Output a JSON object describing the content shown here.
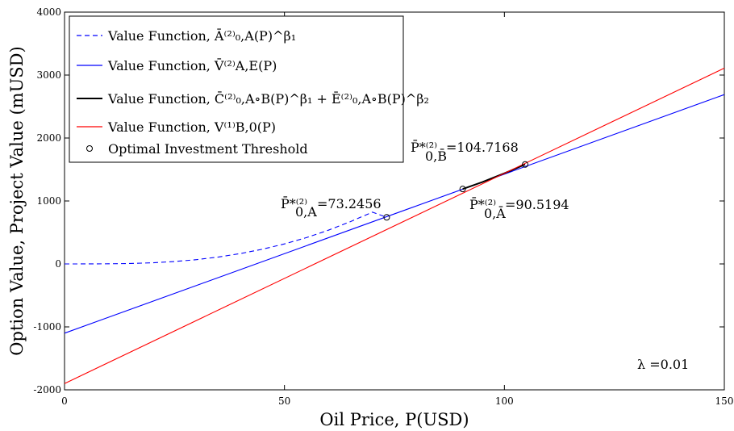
{
  "chart_data": {
    "type": "line",
    "xlabel": "Oil Price, P(USD)",
    "ylabel": "Option Value, Project Value (mUSD)",
    "xlim": [
      0,
      150
    ],
    "ylim": [
      -2000,
      4000
    ],
    "xticks": [
      0,
      50,
      100,
      150
    ],
    "yticks": [
      -2000,
      -1000,
      0,
      1000,
      2000,
      3000,
      4000
    ],
    "grid": false,
    "legend_position": "top-left",
    "series": [
      {
        "name": "Value Function, Ā⁽²⁾₀,A(P)^β₁",
        "style": "dashed",
        "color": "#0000ff",
        "x": [
          0,
          5,
          10,
          15,
          20,
          25,
          30,
          35,
          40,
          45,
          50,
          55,
          60,
          65,
          70,
          73.2456
        ],
        "y": [
          0,
          0.2,
          2,
          7,
          18,
          38,
          68,
          110,
          165,
          234,
          318,
          418,
          536,
          672,
          823,
          740
        ]
      },
      {
        "name": "Value Function, V̄⁽²⁾A,E(P)",
        "style": "solid",
        "color": "#0000ff",
        "x": [
          0,
          150
        ],
        "y": [
          -1100,
          2690
        ]
      },
      {
        "name": "Value Function, C̄⁽²⁾₀,A∘B(P)^β₁ + Ē⁽²⁾₀,A∘B(P)^β₂",
        "style": "solid",
        "color": "#000000",
        "x": [
          90.5194,
          95,
          100,
          104.7168
        ],
        "y": [
          1190,
          1300,
          1440,
          1580
        ]
      },
      {
        "name": "Value Function, V⁽¹⁾B,0(P)",
        "style": "solid",
        "color": "#ff0000",
        "x": [
          0,
          150
        ],
        "y": [
          -1900,
          3110
        ]
      },
      {
        "name": "Optimal Investment Threshold",
        "style": "marker",
        "color": "#000000",
        "x": [
          73.2456,
          90.5194,
          104.7168
        ],
        "y": [
          740,
          1190,
          1580
        ]
      }
    ],
    "annotations": [
      {
        "symbol": "P̄*⁽²⁾",
        "subscript": "0,A",
        "text": "=73.2456"
      },
      {
        "symbol": "P̄*⁽²⁾",
        "subscript": "0,B̄",
        "text": "=104.7168"
      },
      {
        "symbol": "P̄*⁽²⁾",
        "subscript": "0,Ā",
        "text": "=90.5194"
      },
      {
        "text": "λ =0.01"
      }
    ]
  }
}
